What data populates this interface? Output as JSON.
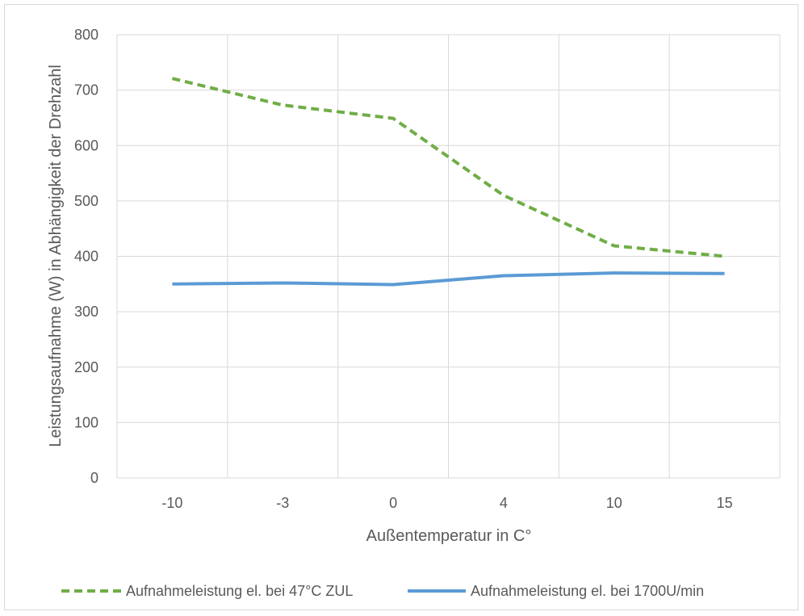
{
  "chart_data": {
    "type": "line",
    "title": "",
    "xlabel": "Außentemperatur in C°",
    "ylabel": "Leistungsaufnahme (W) in Abhängigkeit der Drehzahl",
    "categories": [
      "-10",
      "-3",
      "0",
      "4",
      "10",
      "15"
    ],
    "ylim": [
      0,
      800
    ],
    "yticks": [
      "0",
      "100",
      "200",
      "300",
      "400",
      "500",
      "600",
      "700",
      "800"
    ],
    "grid": true,
    "legend_position": "bottom",
    "series": [
      {
        "name": "Aufnahmeleistung el. bei 47°C ZUL",
        "values": [
          721,
          673,
          649,
          510,
          419,
          400
        ],
        "color": "#70ad47",
        "style": "dashed"
      },
      {
        "name": "Aufnahmeleistung el. bei 1700U/min",
        "values": [
          350,
          352,
          349,
          365,
          370,
          369
        ],
        "color": "#5b9bd5",
        "style": "solid"
      }
    ]
  }
}
